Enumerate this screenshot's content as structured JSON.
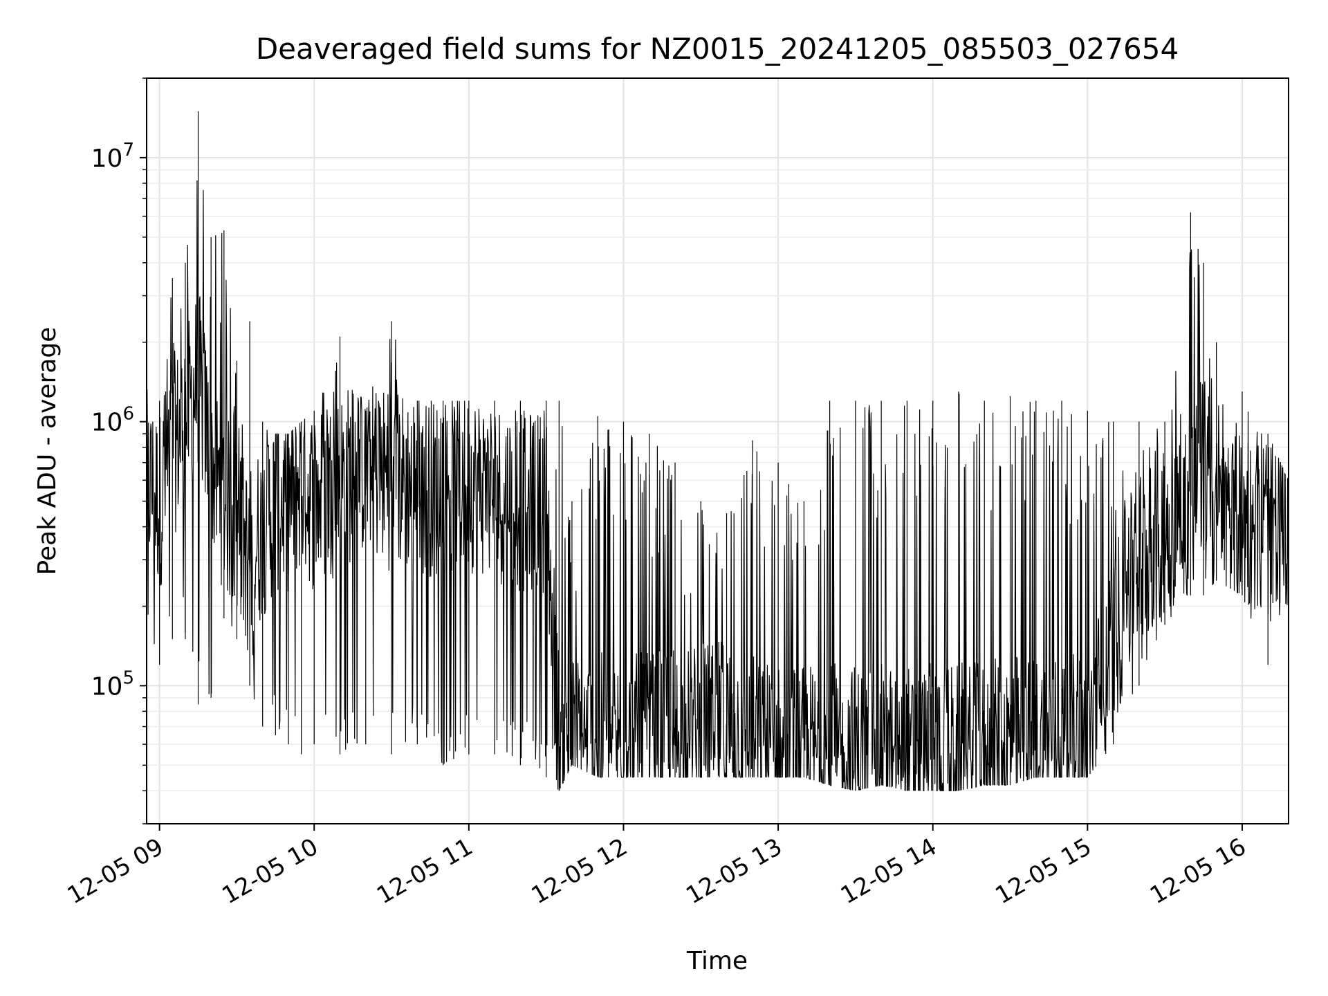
{
  "chart_data": {
    "type": "line",
    "title": "Deaveraged field sums for NZ0015_20241205_085503_027654",
    "xlabel": "Time",
    "ylabel": "Peak ADU - average",
    "x_scale": "time",
    "y_scale": "log",
    "xlim": [
      "2024-12-05 08:55",
      "2024-12-05 16:18"
    ],
    "ylim": [
      30000,
      20000000
    ],
    "x_ticks": [
      "12-05 09",
      "12-05 10",
      "12-05 11",
      "12-05 12",
      "12-05 13",
      "12-05 14",
      "12-05 15",
      "12-05 16"
    ],
    "y_ticks": [
      {
        "base": "10",
        "exp": "5",
        "value": 100000
      },
      {
        "base": "10",
        "exp": "6",
        "value": 1000000
      },
      {
        "base": "10",
        "exp": "7",
        "value": 10000000
      }
    ],
    "grid": true,
    "line_color": "#000000",
    "series": [
      {
        "x": [
          "2024-12-05 08:55",
          "2024-12-05 09:00",
          "2024-12-05 09:05",
          "2024-12-05 09:10",
          "2024-12-05 09:15",
          "2024-12-05 09:20",
          "2024-12-05 09:25",
          "2024-12-05 09:30",
          "2024-12-05 09:35",
          "2024-12-05 09:40",
          "2024-12-05 09:45",
          "2024-12-05 09:50",
          "2024-12-05 09:55",
          "2024-12-05 10:00",
          "2024-12-05 10:10",
          "2024-12-05 10:20",
          "2024-12-05 10:30",
          "2024-12-05 10:40",
          "2024-12-05 10:50",
          "2024-12-05 11:00",
          "2024-12-05 11:10",
          "2024-12-05 11:20",
          "2024-12-05 11:30",
          "2024-12-05 11:35",
          "2024-12-05 11:40",
          "2024-12-05 11:50",
          "2024-12-05 12:00",
          "2024-12-05 12:10",
          "2024-12-05 12:20",
          "2024-12-05 12:30",
          "2024-12-05 12:40",
          "2024-12-05 12:50",
          "2024-12-05 13:00",
          "2024-12-05 13:10",
          "2024-12-05 13:20",
          "2024-12-05 13:30",
          "2024-12-05 13:40",
          "2024-12-05 13:50",
          "2024-12-05 14:00",
          "2024-12-05 14:10",
          "2024-12-05 14:20",
          "2024-12-05 14:30",
          "2024-12-05 14:40",
          "2024-12-05 14:50",
          "2024-12-05 15:00",
          "2024-12-05 15:10",
          "2024-12-05 15:20",
          "2024-12-05 15:30",
          "2024-12-05 15:40",
          "2024-12-05 15:45",
          "2024-12-05 15:50",
          "2024-12-05 16:00",
          "2024-12-05 16:10",
          "2024-12-05 16:18"
        ],
        "y_min": [
          130000,
          120000,
          150000,
          150000,
          85000,
          90000,
          180000,
          150000,
          100000,
          70000,
          65000,
          60000,
          55000,
          60000,
          55000,
          60000,
          55000,
          60000,
          50000,
          55000,
          55000,
          50000,
          45000,
          40000,
          50000,
          45000,
          45000,
          45000,
          45000,
          45000,
          45000,
          45000,
          45000,
          45000,
          42000,
          40000,
          42000,
          40000,
          40000,
          40000,
          42000,
          42000,
          45000,
          45000,
          45000,
          60000,
          100000,
          170000,
          220000,
          220000,
          250000,
          220000,
          120000,
          210000
        ],
        "y_max": [
          1500000,
          1200000,
          3500000,
          4000000,
          15000000,
          5000000,
          5300000,
          1700000,
          2400000,
          1000000,
          900000,
          900000,
          1000000,
          1100000,
          2100000,
          1100000,
          2400000,
          1200000,
          1200000,
          1200000,
          1200000,
          1200000,
          1200000,
          1200000,
          500000,
          1050000,
          1000000,
          900000,
          700000,
          500000,
          450000,
          850000,
          700000,
          500000,
          1200000,
          1200000,
          1200000,
          1200000,
          1200000,
          1300000,
          1200000,
          1250000,
          1200000,
          1200000,
          1100000,
          1000000,
          1000000,
          1000000,
          6200000,
          4000000,
          2000000,
          1300000,
          900000,
          600000
        ],
        "y_typical": [
          600000,
          500000,
          800000,
          1000000,
          1500000,
          700000,
          500000,
          400000,
          300000,
          400000,
          500000,
          500000,
          600000,
          500000,
          600000,
          700000,
          600000,
          600000,
          550000,
          600000,
          550000,
          500000,
          500000,
          60000,
          60000,
          60000,
          60000,
          60000,
          65000,
          65000,
          70000,
          60000,
          55000,
          55000,
          55000,
          55000,
          55000,
          55000,
          55000,
          55000,
          55000,
          60000,
          60000,
          60000,
          60000,
          150000,
          300000,
          400000,
          500000,
          700000,
          400000,
          400000,
          400000,
          400000
        ]
      }
    ]
  }
}
